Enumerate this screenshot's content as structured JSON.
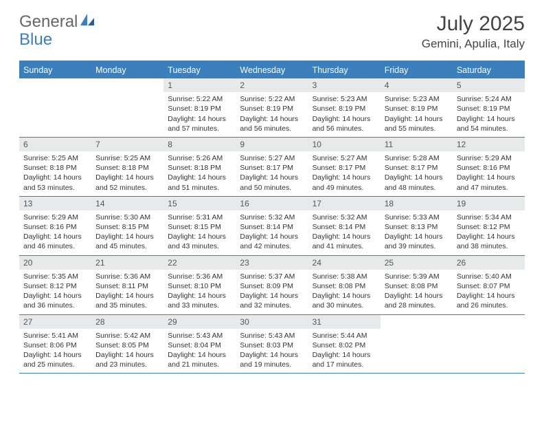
{
  "brand": {
    "general": "General",
    "blue": "Blue"
  },
  "title": "July 2025",
  "location": "Gemini, Apulia, Italy",
  "colors": {
    "accent": "#3b7fbc",
    "daynum_bg": "#e8e9ea",
    "text": "#333333",
    "background": "#ffffff"
  },
  "weekday_labels": [
    "Sunday",
    "Monday",
    "Tuesday",
    "Wednesday",
    "Thursday",
    "Friday",
    "Saturday"
  ],
  "weeks": [
    [
      {
        "empty": true
      },
      {
        "empty": true
      },
      {
        "n": "1",
        "sr": "5:22 AM",
        "ss": "8:19 PM",
        "dl": "14 hours and 57 minutes."
      },
      {
        "n": "2",
        "sr": "5:22 AM",
        "ss": "8:19 PM",
        "dl": "14 hours and 56 minutes."
      },
      {
        "n": "3",
        "sr": "5:23 AM",
        "ss": "8:19 PM",
        "dl": "14 hours and 56 minutes."
      },
      {
        "n": "4",
        "sr": "5:23 AM",
        "ss": "8:19 PM",
        "dl": "14 hours and 55 minutes."
      },
      {
        "n": "5",
        "sr": "5:24 AM",
        "ss": "8:19 PM",
        "dl": "14 hours and 54 minutes."
      }
    ],
    [
      {
        "n": "6",
        "sr": "5:25 AM",
        "ss": "8:18 PM",
        "dl": "14 hours and 53 minutes."
      },
      {
        "n": "7",
        "sr": "5:25 AM",
        "ss": "8:18 PM",
        "dl": "14 hours and 52 minutes."
      },
      {
        "n": "8",
        "sr": "5:26 AM",
        "ss": "8:18 PM",
        "dl": "14 hours and 51 minutes."
      },
      {
        "n": "9",
        "sr": "5:27 AM",
        "ss": "8:17 PM",
        "dl": "14 hours and 50 minutes."
      },
      {
        "n": "10",
        "sr": "5:27 AM",
        "ss": "8:17 PM",
        "dl": "14 hours and 49 minutes."
      },
      {
        "n": "11",
        "sr": "5:28 AM",
        "ss": "8:17 PM",
        "dl": "14 hours and 48 minutes."
      },
      {
        "n": "12",
        "sr": "5:29 AM",
        "ss": "8:16 PM",
        "dl": "14 hours and 47 minutes."
      }
    ],
    [
      {
        "n": "13",
        "sr": "5:29 AM",
        "ss": "8:16 PM",
        "dl": "14 hours and 46 minutes."
      },
      {
        "n": "14",
        "sr": "5:30 AM",
        "ss": "8:15 PM",
        "dl": "14 hours and 45 minutes."
      },
      {
        "n": "15",
        "sr": "5:31 AM",
        "ss": "8:15 PM",
        "dl": "14 hours and 43 minutes."
      },
      {
        "n": "16",
        "sr": "5:32 AM",
        "ss": "8:14 PM",
        "dl": "14 hours and 42 minutes."
      },
      {
        "n": "17",
        "sr": "5:32 AM",
        "ss": "8:14 PM",
        "dl": "14 hours and 41 minutes."
      },
      {
        "n": "18",
        "sr": "5:33 AM",
        "ss": "8:13 PM",
        "dl": "14 hours and 39 minutes."
      },
      {
        "n": "19",
        "sr": "5:34 AM",
        "ss": "8:12 PM",
        "dl": "14 hours and 38 minutes."
      }
    ],
    [
      {
        "n": "20",
        "sr": "5:35 AM",
        "ss": "8:12 PM",
        "dl": "14 hours and 36 minutes."
      },
      {
        "n": "21",
        "sr": "5:36 AM",
        "ss": "8:11 PM",
        "dl": "14 hours and 35 minutes."
      },
      {
        "n": "22",
        "sr": "5:36 AM",
        "ss": "8:10 PM",
        "dl": "14 hours and 33 minutes."
      },
      {
        "n": "23",
        "sr": "5:37 AM",
        "ss": "8:09 PM",
        "dl": "14 hours and 32 minutes."
      },
      {
        "n": "24",
        "sr": "5:38 AM",
        "ss": "8:08 PM",
        "dl": "14 hours and 30 minutes."
      },
      {
        "n": "25",
        "sr": "5:39 AM",
        "ss": "8:08 PM",
        "dl": "14 hours and 28 minutes."
      },
      {
        "n": "26",
        "sr": "5:40 AM",
        "ss": "8:07 PM",
        "dl": "14 hours and 26 minutes."
      }
    ],
    [
      {
        "n": "27",
        "sr": "5:41 AM",
        "ss": "8:06 PM",
        "dl": "14 hours and 25 minutes."
      },
      {
        "n": "28",
        "sr": "5:42 AM",
        "ss": "8:05 PM",
        "dl": "14 hours and 23 minutes."
      },
      {
        "n": "29",
        "sr": "5:43 AM",
        "ss": "8:04 PM",
        "dl": "14 hours and 21 minutes."
      },
      {
        "n": "30",
        "sr": "5:43 AM",
        "ss": "8:03 PM",
        "dl": "14 hours and 19 minutes."
      },
      {
        "n": "31",
        "sr": "5:44 AM",
        "ss": "8:02 PM",
        "dl": "14 hours and 17 minutes."
      },
      {
        "empty": true
      },
      {
        "empty": true
      }
    ]
  ],
  "labels": {
    "sunrise": "Sunrise:",
    "sunset": "Sunset:",
    "daylight": "Daylight:"
  }
}
